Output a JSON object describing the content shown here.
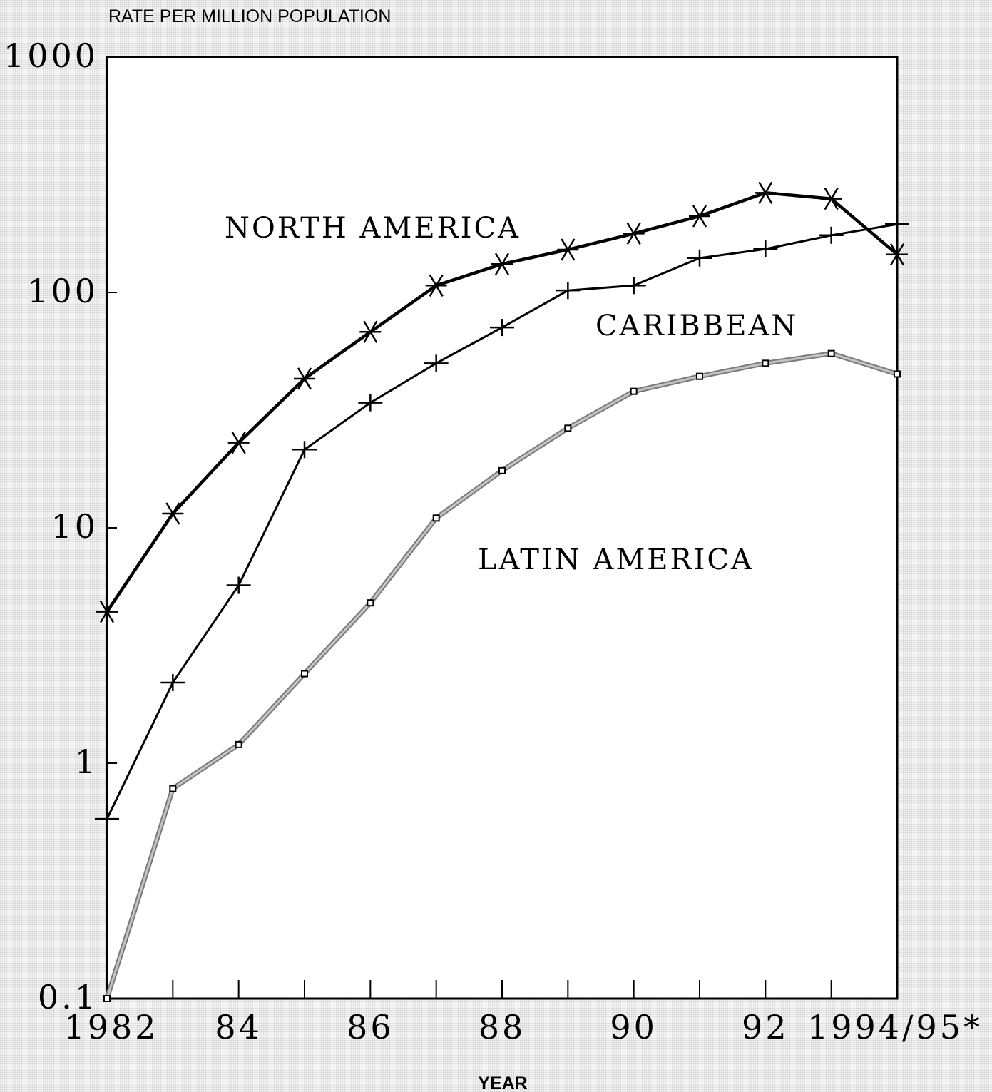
{
  "chart_data": {
    "type": "line",
    "ylabel": "RATE PER MILLION POPULATION",
    "xlabel": "YEAR",
    "yscale": "log",
    "ylim": [
      0.1,
      1000
    ],
    "y_ticks": [
      "1000",
      "100",
      "10",
      "1",
      "0.1"
    ],
    "x": [
      1982,
      1983,
      1984,
      1985,
      1986,
      1987,
      1988,
      1989,
      1990,
      1991,
      1992,
      1993,
      1994
    ],
    "x_tick_labels": [
      "1982",
      "84",
      "86",
      "88",
      "90",
      "92",
      "1994/95*"
    ],
    "series": [
      {
        "name": "NORTH AMERICA",
        "marker": "asterisk",
        "color": "#000000",
        "values": [
          4.4,
          11.5,
          23,
          43,
          68,
          107,
          132,
          152,
          178,
          211,
          265,
          250,
          145
        ]
      },
      {
        "name": "CARIBBEAN",
        "marker": "plus",
        "color": "#000000",
        "values": [
          0.58,
          2.2,
          5.7,
          21.5,
          34,
          50,
          71,
          102,
          107,
          140,
          153,
          175,
          195
        ]
      },
      {
        "name": "LATIN AMERICA",
        "marker": "square",
        "color": "#8c8c8c",
        "values": [
          0.1,
          0.78,
          1.2,
          2.4,
          4.8,
          11,
          17.5,
          26.5,
          38,
          44,
          50,
          55,
          45
        ]
      }
    ]
  }
}
